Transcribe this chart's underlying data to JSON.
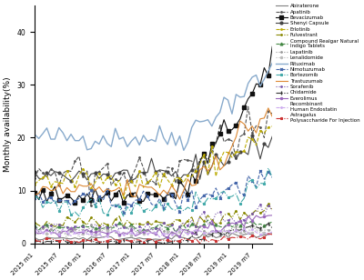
{
  "ylabel": "Monthly availability(%)",
  "ylim": [
    0,
    45
  ],
  "yticks": [
    0,
    10,
    20,
    30,
    40
  ],
  "n_months": 60,
  "x_tick_positions": [
    0,
    6,
    12,
    18,
    24,
    30,
    36,
    42,
    48,
    54
  ],
  "x_tick_labels": [
    "2015 m1",
    "2015 m7",
    "2016 m1",
    "2016 m7",
    "2017 m1",
    "2017 m7",
    "2018 m1",
    "2018 m7",
    "2019 m1",
    "2019 m7"
  ],
  "series_order": [
    "Abiraterone",
    "Apatinib",
    "Bevacizumab",
    "Shenyi Capsule",
    "Erlotinib",
    "Fulvestrant",
    "Compound Realgar Natural Indigo Tablets",
    "Lapatinib",
    "Lenalidomide",
    "Rituximab",
    "Nimotuzumab",
    "Bortezomib",
    "Trastuzumab",
    "Sorafenib",
    "Chidamide",
    "Everolimus",
    "Recombinant Human Endostatin",
    "Astragalus Polysaccharide For Injection"
  ],
  "legend_labels": [
    "Abiraterone",
    "Apatinib",
    "Bevacizumab",
    "Shenyi Capsule",
    "Erlotinib",
    "Fulvestrant",
    "Compound Realgar Natural\nIndigo Tablets",
    "Lapatinib",
    "Lenalidomide",
    "Rituximab",
    "Nimotuzumab",
    "Bortezomib",
    "Trastuzumab",
    "Sorafenib",
    "Chidamide",
    "Everolimus",
    "Recombinant\nHuman Endostatin",
    "Astragalus\nPolysaccharide For Injection"
  ],
  "series": {
    "Abiraterone": {
      "color": "#808080",
      "linestyle": "-",
      "marker": null,
      "linewidth": 0.8,
      "markersize": 2,
      "markevery": 3
    },
    "Apatinib": {
      "color": "#555555",
      "linestyle": "--",
      "marker": ".",
      "linewidth": 0.8,
      "markersize": 2,
      "markevery": 2
    },
    "Bevacizumab": {
      "color": "#111111",
      "linestyle": "-",
      "marker": "s",
      "linewidth": 0.8,
      "markersize": 3,
      "markevery": 2
    },
    "Shenyi Capsule": {
      "color": "#444444",
      "linestyle": "-",
      "marker": "o",
      "linewidth": 0.8,
      "markersize": 2,
      "markevery": 3
    },
    "Erlotinib": {
      "color": "#BBAA00",
      "linestyle": "--",
      "marker": ".",
      "linewidth": 0.8,
      "markersize": 2,
      "markevery": 2
    },
    "Fulvestrant": {
      "color": "#888800",
      "linestyle": "-.",
      "marker": ".",
      "linewidth": 0.8,
      "markersize": 2,
      "markevery": 2
    },
    "Compound Realgar Natural Indigo Tablets": {
      "color": "#448844",
      "linestyle": "--",
      "marker": "^",
      "linewidth": 0.8,
      "markersize": 2,
      "markevery": 3
    },
    "Lapatinib": {
      "color": "#999999",
      "linestyle": ":",
      "marker": ".",
      "linewidth": 0.8,
      "markersize": 2,
      "markevery": 2
    },
    "Lenalidomide": {
      "color": "#BBBBBB",
      "linestyle": ":",
      "marker": "o",
      "linewidth": 0.8,
      "markersize": 1.5,
      "markevery": 3
    },
    "Rituximab": {
      "color": "#88AACC",
      "linestyle": "-",
      "marker": null,
      "linewidth": 1.0,
      "markersize": 2,
      "markevery": 3
    },
    "Nimotuzumab": {
      "color": "#4466AA",
      "linestyle": "--",
      "marker": "x",
      "linewidth": 0.8,
      "markersize": 2,
      "markevery": 2
    },
    "Bortezomib": {
      "color": "#44AAAA",
      "linestyle": "-.",
      "marker": "*",
      "linewidth": 0.8,
      "markersize": 2,
      "markevery": 3
    },
    "Trastuzumab": {
      "color": "#DD8833",
      "linestyle": "-",
      "marker": null,
      "linewidth": 0.8,
      "markersize": 2,
      "markevery": 3
    },
    "Sorafenib": {
      "color": "#7755AA",
      "linestyle": ":",
      "marker": ".",
      "linewidth": 0.8,
      "markersize": 2,
      "markevery": 2
    },
    "Chidamide": {
      "color": "#333333",
      "linestyle": "-.",
      "marker": "|",
      "linewidth": 0.8,
      "markersize": 3,
      "markevery": 2
    },
    "Everolimus": {
      "color": "#9966BB",
      "linestyle": "-",
      "marker": "o",
      "linewidth": 0.8,
      "markersize": 1.5,
      "markevery": 3
    },
    "Recombinant Human Endostatin": {
      "color": "#CCAAEE",
      "linestyle": "--",
      "marker": ".",
      "linewidth": 0.8,
      "markersize": 2,
      "markevery": 2
    },
    "Astragalus Polysaccharide For Injection": {
      "color": "#CC3333",
      "linestyle": "-.",
      "marker": "*",
      "linewidth": 0.8,
      "markersize": 2,
      "markevery": 3
    }
  },
  "figsize": [
    4.0,
    3.08
  ],
  "dpi": 100
}
